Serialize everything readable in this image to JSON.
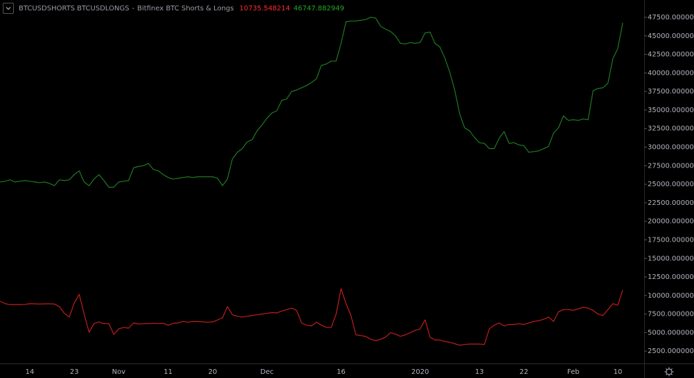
{
  "chart_data": {
    "type": "line",
    "title": "Bitfinex BTC Shorts & Longs",
    "separator": "-",
    "categories": [
      null,
      null,
      null,
      null,
      null,
      null,
      "14",
      null,
      null,
      null,
      null,
      null,
      null,
      null,
      null,
      "23",
      null,
      null,
      null,
      null,
      null,
      null,
      null,
      null,
      "Nov",
      null,
      null,
      null,
      null,
      null,
      null,
      null,
      null,
      null,
      "11",
      null,
      null,
      null,
      null,
      null,
      null,
      null,
      null,
      "20",
      null,
      null,
      null,
      null,
      null,
      null,
      null,
      null,
      null,
      null,
      "Dec",
      null,
      null,
      null,
      null,
      null,
      null,
      null,
      null,
      null,
      null,
      null,
      null,
      null,
      null,
      "16",
      null,
      null,
      null,
      null,
      null,
      null,
      null,
      null,
      null,
      null,
      null,
      null,
      null,
      null,
      null,
      "2020",
      null,
      null,
      null,
      null,
      null,
      null,
      null,
      null,
      null,
      null,
      null,
      "13",
      null,
      null,
      null,
      null,
      null,
      null,
      null,
      null,
      "22",
      null,
      null,
      null,
      null,
      null,
      null,
      null,
      null,
      null,
      "Feb",
      null,
      null,
      null,
      null,
      null,
      null,
      null,
      null,
      "10",
      null
    ],
    "series": [
      {
        "name": "BTCUSDSHORTS",
        "color": "#c21d1d",
        "values": [
          9240,
          8900,
          8780,
          8780,
          8780,
          8800,
          8900,
          8880,
          8850,
          8880,
          8880,
          8850,
          8500,
          7600,
          7100,
          9000,
          10170,
          7500,
          5040,
          6200,
          6440,
          6200,
          6200,
          4760,
          5500,
          5700,
          5600,
          6300,
          6160,
          6200,
          6200,
          6250,
          6200,
          6250,
          6000,
          6250,
          6300,
          6500,
          6400,
          6500,
          6500,
          6450,
          6400,
          6450,
          6700,
          7000,
          8500,
          7400,
          7200,
          7100,
          7200,
          7300,
          7400,
          7500,
          7600,
          7700,
          7650,
          7900,
          8100,
          8300,
          8000,
          6300,
          6000,
          5900,
          6400,
          6000,
          5700,
          5700,
          7500,
          10920,
          8900,
          7300,
          4700,
          4600,
          4480,
          4100,
          3920,
          4100,
          4400,
          5000,
          4800,
          4500,
          4700,
          5000,
          5300,
          5500,
          6720,
          4400,
          4000,
          4000,
          3800,
          3700,
          3500,
          3300,
          3400,
          3450,
          3450,
          3450,
          3400,
          5500,
          6000,
          6300,
          5900,
          6100,
          6100,
          6200,
          6100,
          6300,
          6500,
          6600,
          6800,
          7100,
          6500,
          7800,
          8100,
          8100,
          8000,
          8200,
          8400,
          8300,
          8000,
          7500,
          7300,
          8100,
          8900,
          8700,
          10735.548214
        ]
      },
      {
        "name": "BTCUSDLONGS",
        "color": "#1e7a22",
        "values": [
          25300,
          25400,
          25600,
          25300,
          25400,
          25500,
          25400,
          25300,
          25200,
          25300,
          25100,
          24800,
          25600,
          25500,
          25600,
          26300,
          26800,
          25300,
          24800,
          25700,
          26300,
          25500,
          24600,
          24600,
          25300,
          25400,
          25500,
          27200,
          27400,
          27500,
          27800,
          27000,
          26800,
          26300,
          25900,
          25700,
          25800,
          25900,
          26000,
          25900,
          26000,
          26000,
          26000,
          26000,
          25800,
          24800,
          25700,
          28400,
          29300,
          29800,
          30700,
          31000,
          32200,
          33000,
          33900,
          34600,
          34900,
          36300,
          36500,
          37500,
          37700,
          38000,
          38300,
          38700,
          39200,
          41000,
          41200,
          41600,
          41600,
          44000,
          46900,
          47000,
          47000,
          47100,
          47200,
          47500,
          47400,
          46300,
          45900,
          45600,
          45000,
          44000,
          43900,
          44100,
          44000,
          44100,
          45400,
          45500,
          44000,
          43500,
          42000,
          40100,
          37700,
          34500,
          32600,
          32200,
          31300,
          30600,
          30500,
          29800,
          29800,
          31200,
          32100,
          30500,
          30600,
          30300,
          30200,
          29300,
          29400,
          29500,
          29800,
          30100,
          31900,
          32600,
          34200,
          33600,
          33700,
          33600,
          33800,
          33700,
          37600,
          37900,
          38000,
          38600,
          41900,
          43300,
          46747.882949
        ]
      }
    ],
    "ylim": [
      840,
      49830
    ],
    "yticks": [
      {
        "value": 2500,
        "label": "2500.000000"
      },
      {
        "value": 5000,
        "label": "5000.000000"
      },
      {
        "value": 7500,
        "label": "7500.000000"
      },
      {
        "value": 10000,
        "label": "10000.000000"
      },
      {
        "value": 12500,
        "label": "12500.000000"
      },
      {
        "value": 15000,
        "label": "15000.000000"
      },
      {
        "value": 17500,
        "label": "17500.000000"
      },
      {
        "value": 20000,
        "label": "20000.000000"
      },
      {
        "value": 22500,
        "label": "22500.000000"
      },
      {
        "value": 25000,
        "label": "25000.000000"
      },
      {
        "value": 27500,
        "label": "27500.000000"
      },
      {
        "value": 30000,
        "label": "30000.000000"
      },
      {
        "value": 32500,
        "label": "32500.000000"
      },
      {
        "value": 35000,
        "label": "35000.000000"
      },
      {
        "value": 37500,
        "label": "37500.000000"
      },
      {
        "value": 40000,
        "label": "40000.000000"
      },
      {
        "value": 42500,
        "label": "42500.000000"
      },
      {
        "value": 45000,
        "label": "45000.000000"
      },
      {
        "value": 47500,
        "label": "47500.000000"
      }
    ],
    "grid": false
  }
}
